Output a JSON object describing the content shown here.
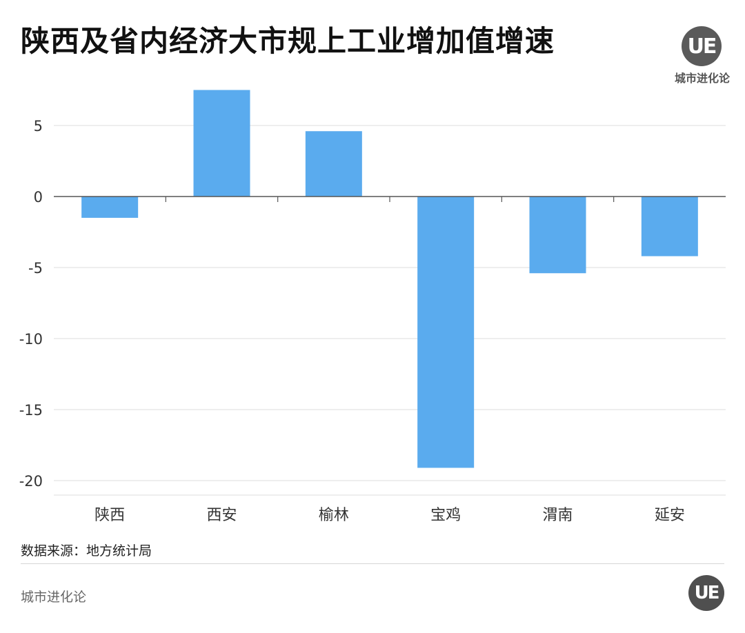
{
  "title": "陕西及省内经济大市规上工业增加值增速",
  "logo": {
    "mark": "UE",
    "caption": "城市进化论"
  },
  "source": "数据来源：地方统计局",
  "footer": {
    "brand": "城市进化论",
    "mark": "UE"
  },
  "colors": {
    "bar": "#5aabee",
    "grid": "#dddddd",
    "axis": "#555555",
    "tick_text": "#333333"
  },
  "chart_data": {
    "type": "bar",
    "title": "陕西及省内经济大市规上工业增加值增速",
    "categories": [
      "陕西",
      "西安",
      "榆林",
      "宝鸡",
      "渭南",
      "延安"
    ],
    "values": [
      -1.5,
      7.5,
      4.6,
      -19.1,
      -5.4,
      -4.2
    ],
    "ylim": [
      -20,
      7.5
    ],
    "yticks": [
      5,
      0,
      -5,
      -10,
      -15,
      -20
    ],
    "ytick_labels": [
      "5",
      "0",
      "-5",
      "-10",
      "-15",
      "-20"
    ],
    "xlabel": "",
    "ylabel": "",
    "grid": true,
    "legend": "none"
  }
}
